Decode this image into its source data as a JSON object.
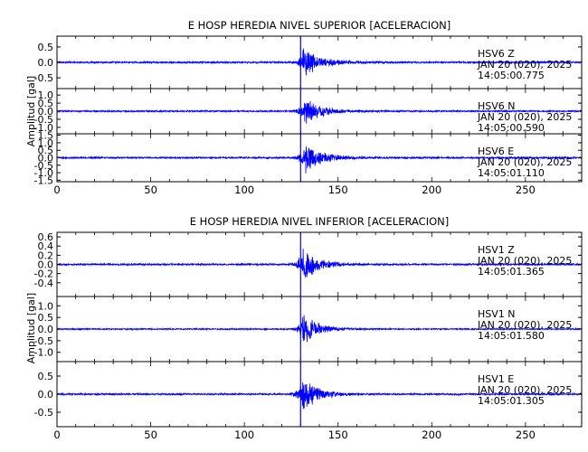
{
  "colors": {
    "trace": "#0000ff",
    "axis": "#000000",
    "marker": "#0000ff"
  },
  "chart_data": [
    {
      "type": "line",
      "title": "E HOSP HEREDIA NIVEL SUPERIOR [ACELERACION]",
      "ylabel": "Amplitud  [gal]",
      "xlabel": "",
      "xlim": [
        0,
        280
      ],
      "x_ticks": [
        0,
        50,
        100,
        150,
        200,
        250
      ],
      "marker_x": 130,
      "panels": [
        {
          "station": "HSV6",
          "component": "Z",
          "date": "JAN 20 (020), 2025",
          "time": "14:05:00.775",
          "ylim": [
            -0.85,
            0.85
          ],
          "y_ticks": [
            0.5,
            0.0,
            -0.5
          ],
          "y_ticklabels": [
            "0.5",
            "0.0",
            "-0.5"
          ],
          "noise": 0.03,
          "peak": 0.55,
          "onset": 125,
          "peak_x": 131,
          "tail": 160
        },
        {
          "station": "HSV6",
          "component": "N",
          "date": "JAN 20 (020), 2025",
          "time": "14:05:00.590",
          "ylim": [
            -1.4,
            1.4
          ],
          "y_ticks": [
            1.0,
            0.5,
            0.0,
            -0.5,
            -1.0
          ],
          "y_ticklabels": [
            "1.0",
            "0.5",
            "0.0",
            "-0.5",
            "-1.0"
          ],
          "noise": 0.05,
          "peak": 1.0,
          "onset": 124,
          "peak_x": 132,
          "tail": 160
        },
        {
          "station": "HSV6",
          "component": "E",
          "date": "JAN 20 (020), 2025",
          "time": "14:05:01.110",
          "ylim": [
            -1.6,
            1.6
          ],
          "y_ticks": [
            1.5,
            1.0,
            0.5,
            0.0,
            -0.5,
            -1.0,
            -1.5
          ],
          "y_ticklabels": [
            "1.5",
            "1.0",
            "0.5",
            "0.0",
            "-0.5",
            "-1.0",
            "-1.5"
          ],
          "noise": 0.06,
          "peak": 1.2,
          "onset": 124,
          "peak_x": 132,
          "tail": 160
        }
      ]
    },
    {
      "type": "line",
      "title": "E HOSP HEREDIA NIVEL INFERIOR [ACELERACION]",
      "ylabel": "Amplitud  [gal]",
      "xlabel": "",
      "xlim": [
        0,
        280
      ],
      "x_ticks": [
        0,
        50,
        100,
        150,
        200,
        250
      ],
      "marker_x": 130,
      "panels": [
        {
          "station": "HSV1",
          "component": "Z",
          "date": "JAN 20 (020), 2025",
          "time": "14:05:01.365",
          "ylim": [
            -0.7,
            0.7
          ],
          "y_ticks": [
            0.6,
            0.4,
            0.2,
            0.0,
            -0.2,
            -0.4
          ],
          "y_ticklabels": [
            "0.6",
            "0.4",
            "0.2",
            "0.0",
            "-0.2",
            "-0.4"
          ],
          "noise": 0.02,
          "peak": 0.45,
          "onset": 122,
          "peak_x": 131,
          "tail": 155
        },
        {
          "station": "HSV1",
          "component": "N",
          "date": "JAN 20 (020), 2025",
          "time": "14:05:01.580",
          "ylim": [
            -1.4,
            1.4
          ],
          "y_ticks": [
            1.0,
            0.5,
            0.0,
            -0.5,
            -1.0
          ],
          "y_ticklabels": [
            "1.0",
            "0.5",
            "0.0",
            "-0.5",
            "-1.0"
          ],
          "noise": 0.03,
          "peak": 0.8,
          "onset": 124,
          "peak_x": 131,
          "tail": 155
        },
        {
          "station": "HSV1",
          "component": "E",
          "date": "JAN 20 (020), 2025",
          "time": "14:05:01.305",
          "ylim": [
            -0.9,
            0.9
          ],
          "y_ticks": [
            0.5,
            0.0,
            -0.5
          ],
          "y_ticklabels": [
            "0.5",
            "0.0",
            "-0.5"
          ],
          "noise": 0.025,
          "peak": 0.6,
          "onset": 122,
          "peak_x": 131,
          "tail": 155
        }
      ]
    }
  ]
}
